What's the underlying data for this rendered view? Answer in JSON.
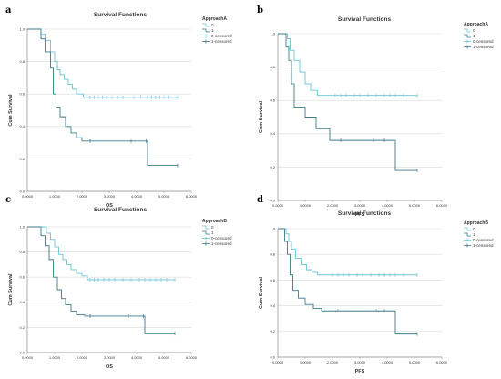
{
  "colors": {
    "group0": "#6bc4d7",
    "group1": "#3b7a8c",
    "grid": "#d8d8d8",
    "axis": "#888888"
  },
  "chart_data": [
    {
      "type": "line",
      "panel_label": "a",
      "title": "Survival Functions",
      "xlabel": "OS",
      "ylabel": "Cum Survival",
      "xlim": [
        0,
        6
      ],
      "ylim": [
        0,
        1
      ],
      "x_ticks": [
        "0.0000",
        "1.0000",
        "2.0000",
        "3.0000",
        "4.0000",
        "5.0000",
        "6.0000"
      ],
      "y_ticks": [
        "0.0",
        "0.2",
        "0.4",
        "0.6",
        "0.8",
        "1.0"
      ],
      "legend": {
        "title": "ApproachA",
        "items": [
          "0",
          "1",
          "0-censored",
          "1-censored"
        ],
        "position": "top-right"
      },
      "series": [
        {
          "name": "0",
          "x": [
            0,
            0.5,
            0.65,
            0.85,
            1.0,
            1.1,
            1.2,
            1.35,
            1.5,
            1.65,
            1.8,
            2.05,
            2.3
          ],
          "y": [
            1.0,
            0.97,
            0.93,
            0.86,
            0.8,
            0.75,
            0.72,
            0.69,
            0.66,
            0.63,
            0.6,
            0.58,
            0.58
          ],
          "censor_x": [
            2.3,
            2.45,
            2.6,
            2.75,
            2.9,
            3.1,
            3.3,
            3.5,
            3.9,
            4.15,
            4.4,
            4.55,
            4.7,
            4.85,
            5.0,
            5.15,
            5.5
          ],
          "end_x": 5.5
        },
        {
          "name": "1",
          "x": [
            0,
            0.5,
            0.65,
            0.85,
            0.95,
            1.05,
            1.2,
            1.4,
            1.6,
            1.8,
            2.0,
            4.4
          ],
          "y": [
            1.0,
            0.94,
            0.86,
            0.76,
            0.6,
            0.52,
            0.46,
            0.4,
            0.36,
            0.33,
            0.31,
            0.16
          ],
          "censor_x": [
            2.3,
            3.8,
            4.35,
            5.5
          ],
          "end_x": 5.5
        }
      ]
    },
    {
      "type": "line",
      "panel_label": "b",
      "title": "Survival Functions",
      "xlabel": "PFS",
      "ylabel": "Cum Survival",
      "xlim": [
        0,
        6
      ],
      "ylim": [
        0,
        1
      ],
      "x_ticks": [
        "0.0000",
        "1.0000",
        "2.0000",
        "3.0000",
        "4.0000",
        "5.0000",
        "6.0000"
      ],
      "y_ticks": [
        "0.0",
        "0.2",
        "0.4",
        "0.6",
        "0.8",
        "1.0"
      ],
      "legend": {
        "title": "ApproachA",
        "items": [
          "0",
          "1",
          "0-censored",
          "1-censored"
        ],
        "position": "top-right"
      },
      "series": [
        {
          "name": "0",
          "x": [
            0,
            0.35,
            0.45,
            0.6,
            0.8,
            1.0,
            1.2,
            1.45,
            1.7
          ],
          "y": [
            1.0,
            0.97,
            0.9,
            0.84,
            0.77,
            0.7,
            0.66,
            0.63,
            0.63
          ],
          "censor_x": [
            2.1,
            2.3,
            2.5,
            2.8,
            3.0,
            3.3,
            3.6,
            3.9,
            4.1,
            4.3,
            4.6,
            5.1
          ],
          "end_x": 5.1
        },
        {
          "name": "1",
          "x": [
            0,
            0.3,
            0.4,
            0.5,
            0.6,
            1.0,
            1.4,
            1.9,
            4.3
          ],
          "y": [
            1.0,
            0.92,
            0.84,
            0.7,
            0.56,
            0.5,
            0.43,
            0.36,
            0.18
          ],
          "censor_x": [
            2.3,
            3.5,
            3.9,
            5.1
          ],
          "end_x": 5.1
        }
      ]
    },
    {
      "type": "line",
      "panel_label": "c",
      "title": "Survival Functions",
      "xlabel": "OS",
      "ylabel": "Cum Survival",
      "xlim": [
        0,
        6
      ],
      "ylim": [
        0,
        1
      ],
      "x_ticks": [
        "0.0000",
        "1.0000",
        "2.0000",
        "3.0000",
        "4.0000",
        "5.0000",
        "6.0000"
      ],
      "y_ticks": [
        "0.0",
        "0.2",
        "0.4",
        "0.6",
        "0.8",
        "1.0"
      ],
      "legend": {
        "title": "ApproachB",
        "items": [
          "0",
          "1",
          "0-censored",
          "1-censored"
        ],
        "position": "top-right"
      },
      "series": [
        {
          "name": "0",
          "x": [
            0,
            0.7,
            0.85,
            1.0,
            1.15,
            1.3,
            1.45,
            1.6,
            1.8,
            2.0,
            2.2
          ],
          "y": [
            1.0,
            0.95,
            0.9,
            0.84,
            0.78,
            0.74,
            0.7,
            0.66,
            0.63,
            0.61,
            0.58
          ],
          "censor_x": [
            2.3,
            2.45,
            2.6,
            2.8,
            3.0,
            3.2,
            3.5,
            3.8,
            4.1,
            4.3,
            4.5,
            4.7,
            4.9,
            5.1,
            5.4
          ],
          "end_x": 5.4
        },
        {
          "name": "1",
          "x": [
            0,
            0.5,
            0.65,
            0.8,
            0.95,
            1.1,
            1.25,
            1.4,
            1.6,
            1.8,
            2.1,
            4.3
          ],
          "y": [
            1.0,
            0.93,
            0.85,
            0.74,
            0.6,
            0.5,
            0.43,
            0.38,
            0.33,
            0.3,
            0.29,
            0.15
          ],
          "censor_x": [
            2.3,
            3.7,
            4.25,
            5.4
          ],
          "end_x": 5.4
        }
      ]
    },
    {
      "type": "line",
      "panel_label": "d",
      "title": "Survival Functions",
      "xlabel": "PFS",
      "ylabel": "Cum Survival",
      "xlim": [
        0,
        6
      ],
      "ylim": [
        0,
        1
      ],
      "x_ticks": [
        "0.0000",
        "1.0000",
        "2.0000",
        "3.0000",
        "4.0000",
        "5.0000",
        "6.0000"
      ],
      "y_ticks": [
        "0.0",
        "0.2",
        "0.4",
        "0.6",
        "0.8",
        "1.0"
      ],
      "legend": {
        "title": "ApproachB",
        "items": [
          "0",
          "1",
          "0-censored",
          "1-censored"
        ],
        "position": "top-right"
      },
      "series": [
        {
          "name": "0",
          "x": [
            0,
            0.3,
            0.4,
            0.5,
            0.65,
            0.85,
            1.05,
            1.25,
            1.45,
            1.7
          ],
          "y": [
            1.0,
            0.96,
            0.9,
            0.84,
            0.77,
            0.72,
            0.68,
            0.66,
            0.64,
            0.64
          ],
          "censor_x": [
            2.0,
            2.2,
            2.4,
            2.6,
            2.9,
            3.1,
            3.4,
            3.7,
            3.9,
            4.1,
            4.3,
            4.6,
            5.1
          ],
          "end_x": 5.1
        },
        {
          "name": "1",
          "x": [
            0,
            0.25,
            0.35,
            0.45,
            0.55,
            0.75,
            1.0,
            1.3,
            1.6,
            4.3
          ],
          "y": [
            1.0,
            0.9,
            0.8,
            0.64,
            0.52,
            0.46,
            0.41,
            0.38,
            0.36,
            0.18
          ],
          "censor_x": [
            2.2,
            3.6,
            3.9,
            5.1
          ],
          "end_x": 5.1
        }
      ]
    }
  ]
}
